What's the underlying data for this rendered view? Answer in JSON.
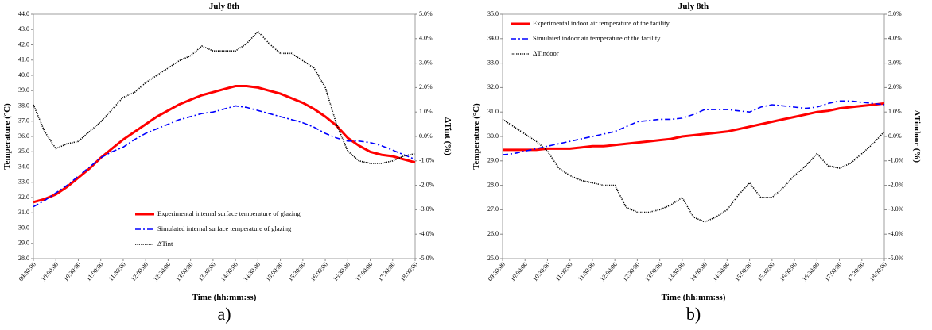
{
  "chart_data": [
    {
      "type": "line",
      "title": "July 8th",
      "x_label": "Time (hh:mm:ss)",
      "y_label": "Temperature (°C)",
      "y2_label": "ΔTint (%)",
      "panel_label": "a)",
      "legend": "lower center",
      "categories": [
        "09:30:00",
        null,
        "10:00:00",
        null,
        "10:30:00",
        null,
        "11:00:00",
        null,
        "11:30:00",
        null,
        "12:00:00",
        null,
        "12:30:00",
        null,
        "13:00:00",
        null,
        "13:30:00",
        null,
        "14:00:00",
        null,
        "14:30:00",
        null,
        "15:00:00",
        null,
        "15:30:00",
        null,
        "16:00:00",
        null,
        "16:30:00",
        null,
        "17:00:00",
        null,
        "17:30:00",
        null,
        "18:00:00"
      ],
      "ylim": [
        28,
        44
      ],
      "yticks": [
        {
          "value": 28,
          "label": "28.0"
        },
        {
          "value": 29,
          "label": "29.0"
        },
        {
          "value": 30,
          "label": "30.0"
        },
        {
          "value": 31,
          "label": "31.0"
        },
        {
          "value": 32,
          "label": "32.0"
        },
        {
          "value": 33,
          "label": "33.0"
        },
        {
          "value": 34,
          "label": "34.0"
        },
        {
          "value": 35,
          "label": "35.0"
        },
        {
          "value": 36,
          "label": "36.0"
        },
        {
          "value": 37,
          "label": "37.0"
        },
        {
          "value": 38,
          "label": "38.0"
        },
        {
          "value": 39,
          "label": "39.0"
        },
        {
          "value": 40,
          "label": "40.0"
        },
        {
          "value": 41,
          "label": "41.0"
        },
        {
          "value": 42,
          "label": "42.0"
        },
        {
          "value": 43,
          "label": "43.0"
        },
        {
          "value": 44,
          "label": "44.0"
        }
      ],
      "y2lim": [
        -5,
        5
      ],
      "y2ticks": [
        {
          "value": -5,
          "label": "-5.0%"
        },
        {
          "value": -4,
          "label": "-4.0%"
        },
        {
          "value": -3,
          "label": "-3.0%"
        },
        {
          "value": -2,
          "label": "-2.0%"
        },
        {
          "value": -1,
          "label": "-1.0%"
        },
        {
          "value": 0,
          "label": "0.0%"
        },
        {
          "value": 1,
          "label": "1.0%"
        },
        {
          "value": 2,
          "label": "2.0%"
        },
        {
          "value": 3,
          "label": "3.0%"
        },
        {
          "value": 4,
          "label": "4.0%"
        },
        {
          "value": 5,
          "label": "5.0%"
        }
      ],
      "series": [
        {
          "name": "Experimental internal surface temperature of glazing",
          "color": "#ff0000",
          "dash": "solid",
          "values": [
            31.7,
            31.9,
            32.2,
            32.7,
            33.3,
            33.9,
            34.6,
            35.2,
            35.8,
            36.3,
            36.8,
            37.3,
            37.7,
            38.1,
            38.4,
            38.7,
            38.9,
            39.1,
            39.3,
            39.3,
            39.2,
            39.0,
            38.8,
            38.5,
            38.2,
            37.8,
            37.3,
            36.7,
            35.9,
            35.4,
            35.0,
            34.8,
            34.7,
            34.5,
            34.3
          ]
        },
        {
          "name": "Simulated internal surface temperature of glazing",
          "color": "#0000ff",
          "dash": "dashdot",
          "values": [
            31.4,
            31.8,
            32.3,
            32.8,
            33.4,
            34.0,
            34.6,
            35.0,
            35.3,
            35.8,
            36.2,
            36.5,
            36.8,
            37.1,
            37.3,
            37.5,
            37.6,
            37.8,
            38.0,
            37.9,
            37.7,
            37.5,
            37.3,
            37.1,
            36.9,
            36.6,
            36.2,
            35.9,
            35.7,
            35.7,
            35.6,
            35.4,
            35.1,
            34.8,
            34.5
          ]
        },
        {
          "name": "ΔTint",
          "color": "#000000",
          "dash": "dotted",
          "axis": "y2",
          "values": [
            1.3,
            0.2,
            -0.5,
            -0.3,
            -0.2,
            0.2,
            0.6,
            1.1,
            1.6,
            1.8,
            2.2,
            2.5,
            2.8,
            3.1,
            3.3,
            3.7,
            3.5,
            3.5,
            3.5,
            3.8,
            4.3,
            3.8,
            3.4,
            3.4,
            3.1,
            2.8,
            2.0,
            0.5,
            -0.6,
            -1.0,
            -1.1,
            -1.1,
            -1.0,
            -0.8,
            -0.7
          ]
        }
      ]
    },
    {
      "type": "line",
      "title": "July 8th",
      "x_label": "Time (hh:mm:ss)",
      "y_label": "Temperature (°C)",
      "y2_label": "ΔTindoor (%)",
      "panel_label": "b)",
      "legend": "upper left",
      "categories": [
        "09:30:00",
        null,
        "10:00:00",
        null,
        "10:30:00",
        null,
        "11:00:00",
        null,
        "11:30:00",
        null,
        "12:00:00",
        null,
        "12:30:00",
        null,
        "13:00:00",
        null,
        "13:30:00",
        null,
        "14:00:00",
        null,
        "14:30:00",
        null,
        "15:00:00",
        null,
        "15:30:00",
        null,
        "16:00:00",
        null,
        "16:30:00",
        null,
        "17:00:00",
        null,
        "17:30:00",
        null,
        "18:00:00"
      ],
      "ylim": [
        25,
        35
      ],
      "yticks": [
        {
          "value": 25,
          "label": "25.0"
        },
        {
          "value": 26,
          "label": "26.0"
        },
        {
          "value": 27,
          "label": "27.0"
        },
        {
          "value": 28,
          "label": "28.0"
        },
        {
          "value": 29,
          "label": "29.0"
        },
        {
          "value": 30,
          "label": "30.0"
        },
        {
          "value": 31,
          "label": "31.0"
        },
        {
          "value": 32,
          "label": "32.0"
        },
        {
          "value": 33,
          "label": "33.0"
        },
        {
          "value": 34,
          "label": "34.0"
        },
        {
          "value": 35,
          "label": "35.0"
        }
      ],
      "y2lim": [
        -5,
        5
      ],
      "y2ticks": [
        {
          "value": -5,
          "label": "-5.0%"
        },
        {
          "value": -4,
          "label": "-4.0%"
        },
        {
          "value": -3,
          "label": "-3.0%"
        },
        {
          "value": -2,
          "label": "-2.0%"
        },
        {
          "value": -1,
          "label": "-1.0%"
        },
        {
          "value": 0,
          "label": "0.0%"
        },
        {
          "value": 1,
          "label": "1.0%"
        },
        {
          "value": 2,
          "label": "2.0%"
        },
        {
          "value": 3,
          "label": "3.0%"
        },
        {
          "value": 4,
          "label": "4.0%"
        },
        {
          "value": 5,
          "label": "5.0%"
        }
      ],
      "series": [
        {
          "name": "Experimental indoor air temperature of the facility",
          "color": "#ff0000",
          "dash": "solid",
          "values": [
            29.45,
            29.45,
            29.45,
            29.45,
            29.5,
            29.5,
            29.5,
            29.55,
            29.6,
            29.6,
            29.65,
            29.7,
            29.75,
            29.8,
            29.85,
            29.9,
            30.0,
            30.05,
            30.1,
            30.15,
            30.2,
            30.3,
            30.4,
            30.5,
            30.6,
            30.7,
            30.8,
            30.9,
            31.0,
            31.05,
            31.15,
            31.2,
            31.25,
            31.3,
            31.35
          ]
        },
        {
          "name": "Simulated indoor air temperature of the facility",
          "color": "#0000ff",
          "dash": "dashdot",
          "values": [
            29.25,
            29.3,
            29.4,
            29.5,
            29.6,
            29.7,
            29.8,
            29.9,
            30.0,
            30.1,
            30.2,
            30.4,
            30.6,
            30.65,
            30.7,
            30.7,
            30.75,
            30.9,
            31.1,
            31.1,
            31.1,
            31.05,
            31.0,
            31.2,
            31.3,
            31.25,
            31.2,
            31.15,
            31.2,
            31.35,
            31.45,
            31.45,
            31.4,
            31.35,
            31.3
          ]
        },
        {
          "name": "ΔTindoor",
          "color": "#000000",
          "dash": "dotted",
          "axis": "y2",
          "values": [
            0.7,
            0.4,
            0.1,
            -0.2,
            -0.6,
            -1.3,
            -1.6,
            -1.8,
            -1.9,
            -2.0,
            -2.0,
            -2.9,
            -3.1,
            -3.1,
            -3.0,
            -2.8,
            -2.5,
            -3.3,
            -3.5,
            -3.3,
            -3.0,
            -2.4,
            -1.9,
            -2.5,
            -2.5,
            -2.1,
            -1.6,
            -1.2,
            -0.7,
            -1.2,
            -1.3,
            -1.1,
            -0.7,
            -0.3,
            0.2
          ]
        }
      ]
    }
  ]
}
